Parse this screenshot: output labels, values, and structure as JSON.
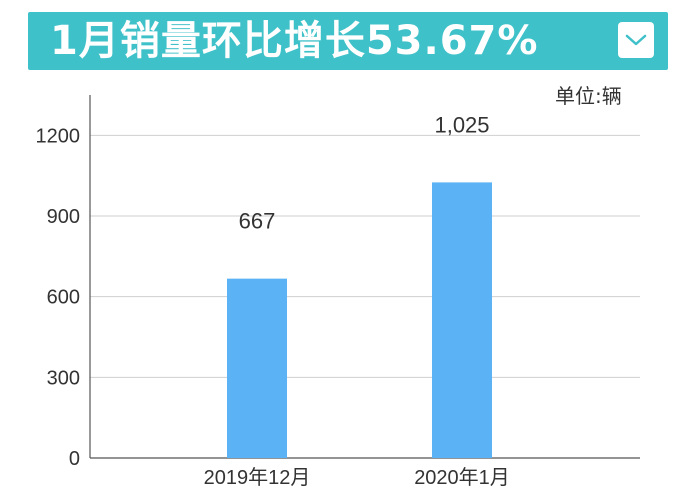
{
  "header": {
    "title": "1月销量环比增长53.67%",
    "bg_color": "#3fc1c9"
  },
  "unit_label": "单位:辆",
  "dropdown_icon": "chevron-down-icon",
  "chart_data": {
    "type": "bar",
    "categories": [
      "2019年12月",
      "2020年1月"
    ],
    "values": [
      667,
      1025
    ],
    "data_labels": [
      "667",
      "1,025"
    ],
    "ylim": [
      0,
      1350
    ],
    "yticks": [
      0,
      300,
      600,
      900,
      1200
    ],
    "grid": true,
    "bar_color": "#5bb2f4"
  }
}
